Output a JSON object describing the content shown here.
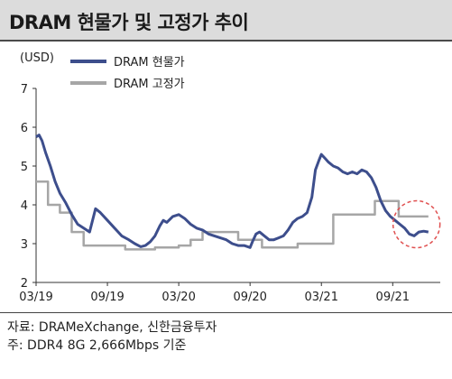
{
  "title": "DRAM 현물가 및 고정가 추이",
  "notes": {
    "source": "자료: DRAMeXchange, 신한금융투자",
    "note": "주: DDR4 8G 2,666Mbps 기준"
  },
  "chart_data": {
    "type": "line",
    "ylabel": "(USD)",
    "ylim": [
      2,
      7
    ],
    "yticks": [
      2,
      3,
      4,
      5,
      6,
      7
    ],
    "xlim": [
      0,
      34
    ],
    "xticks": [
      {
        "x": 0,
        "label": "03/19"
      },
      {
        "x": 6,
        "label": "09/19"
      },
      {
        "x": 12,
        "label": "03/20"
      },
      {
        "x": 18,
        "label": "09/20"
      },
      {
        "x": 24,
        "label": "03/21"
      },
      {
        "x": 30,
        "label": "09/21"
      }
    ],
    "legend_position": "top-left",
    "series": [
      {
        "name": "DRAM 현물가",
        "color": "#3d4e8c",
        "points": [
          [
            0.0,
            5.75
          ],
          [
            0.25,
            5.8
          ],
          [
            0.5,
            5.65
          ],
          [
            0.8,
            5.35
          ],
          [
            1.2,
            5.0
          ],
          [
            1.6,
            4.6
          ],
          [
            2.0,
            4.3
          ],
          [
            2.5,
            4.05
          ],
          [
            3.0,
            3.75
          ],
          [
            3.5,
            3.5
          ],
          [
            4.0,
            3.4
          ],
          [
            4.5,
            3.3
          ],
          [
            5.0,
            3.9
          ],
          [
            5.4,
            3.8
          ],
          [
            6.0,
            3.6
          ],
          [
            6.6,
            3.4
          ],
          [
            7.2,
            3.2
          ],
          [
            7.8,
            3.1
          ],
          [
            8.3,
            3.0
          ],
          [
            8.8,
            2.92
          ],
          [
            9.2,
            2.95
          ],
          [
            9.6,
            3.05
          ],
          [
            10.0,
            3.2
          ],
          [
            10.4,
            3.45
          ],
          [
            10.7,
            3.6
          ],
          [
            11.0,
            3.55
          ],
          [
            11.5,
            3.7
          ],
          [
            12.0,
            3.75
          ],
          [
            12.5,
            3.65
          ],
          [
            13.0,
            3.5
          ],
          [
            13.5,
            3.4
          ],
          [
            14.0,
            3.35
          ],
          [
            14.5,
            3.25
          ],
          [
            15.0,
            3.2
          ],
          [
            15.5,
            3.15
          ],
          [
            16.0,
            3.1
          ],
          [
            16.5,
            3.0
          ],
          [
            17.0,
            2.95
          ],
          [
            17.5,
            2.95
          ],
          [
            18.0,
            2.9
          ],
          [
            18.2,
            3.05
          ],
          [
            18.5,
            3.25
          ],
          [
            18.8,
            3.3
          ],
          [
            19.2,
            3.2
          ],
          [
            19.6,
            3.1
          ],
          [
            20.0,
            3.1
          ],
          [
            20.4,
            3.15
          ],
          [
            20.8,
            3.2
          ],
          [
            21.2,
            3.35
          ],
          [
            21.6,
            3.55
          ],
          [
            22.0,
            3.65
          ],
          [
            22.4,
            3.7
          ],
          [
            22.8,
            3.8
          ],
          [
            23.2,
            4.2
          ],
          [
            23.5,
            4.9
          ],
          [
            23.8,
            5.15
          ],
          [
            24.0,
            5.3
          ],
          [
            24.3,
            5.2
          ],
          [
            24.6,
            5.1
          ],
          [
            25.0,
            5.0
          ],
          [
            25.4,
            4.95
          ],
          [
            25.8,
            4.85
          ],
          [
            26.2,
            4.8
          ],
          [
            26.6,
            4.85
          ],
          [
            27.0,
            4.8
          ],
          [
            27.4,
            4.9
          ],
          [
            27.8,
            4.85
          ],
          [
            28.2,
            4.7
          ],
          [
            28.6,
            4.45
          ],
          [
            29.0,
            4.1
          ],
          [
            29.4,
            3.85
          ],
          [
            29.8,
            3.7
          ],
          [
            30.2,
            3.6
          ],
          [
            30.6,
            3.5
          ],
          [
            31.0,
            3.4
          ],
          [
            31.4,
            3.25
          ],
          [
            31.8,
            3.2
          ],
          [
            32.2,
            3.3
          ],
          [
            32.6,
            3.32
          ],
          [
            33.0,
            3.3
          ]
        ]
      },
      {
        "name": "DRAM 고정가",
        "color": "#a6a6a6",
        "points": [
          [
            0,
            4.6
          ],
          [
            1.0,
            4.6
          ],
          [
            1.0,
            4.0
          ],
          [
            2.0,
            4.0
          ],
          [
            2.0,
            3.8
          ],
          [
            3.0,
            3.8
          ],
          [
            3.0,
            3.3
          ],
          [
            4.0,
            3.3
          ],
          [
            4.0,
            2.95
          ],
          [
            7.5,
            2.95
          ],
          [
            7.5,
            2.85
          ],
          [
            10.0,
            2.85
          ],
          [
            10.0,
            2.9
          ],
          [
            12.0,
            2.9
          ],
          [
            12.0,
            2.95
          ],
          [
            13.0,
            2.95
          ],
          [
            13.0,
            3.1
          ],
          [
            14.0,
            3.1
          ],
          [
            14.0,
            3.3
          ],
          [
            17.0,
            3.3
          ],
          [
            17.0,
            3.1
          ],
          [
            19.0,
            3.1
          ],
          [
            19.0,
            2.9
          ],
          [
            22.0,
            2.9
          ],
          [
            22.0,
            3.0
          ],
          [
            25.0,
            3.0
          ],
          [
            25.0,
            3.75
          ],
          [
            28.5,
            3.75
          ],
          [
            28.5,
            4.1
          ],
          [
            30.5,
            4.1
          ],
          [
            30.5,
            3.7
          ],
          [
            33.0,
            3.7
          ]
        ]
      }
    ],
    "annotations": [
      {
        "type": "dashed-circle",
        "color": "#e05050",
        "x": 32.0,
        "y": 3.5
      }
    ]
  }
}
